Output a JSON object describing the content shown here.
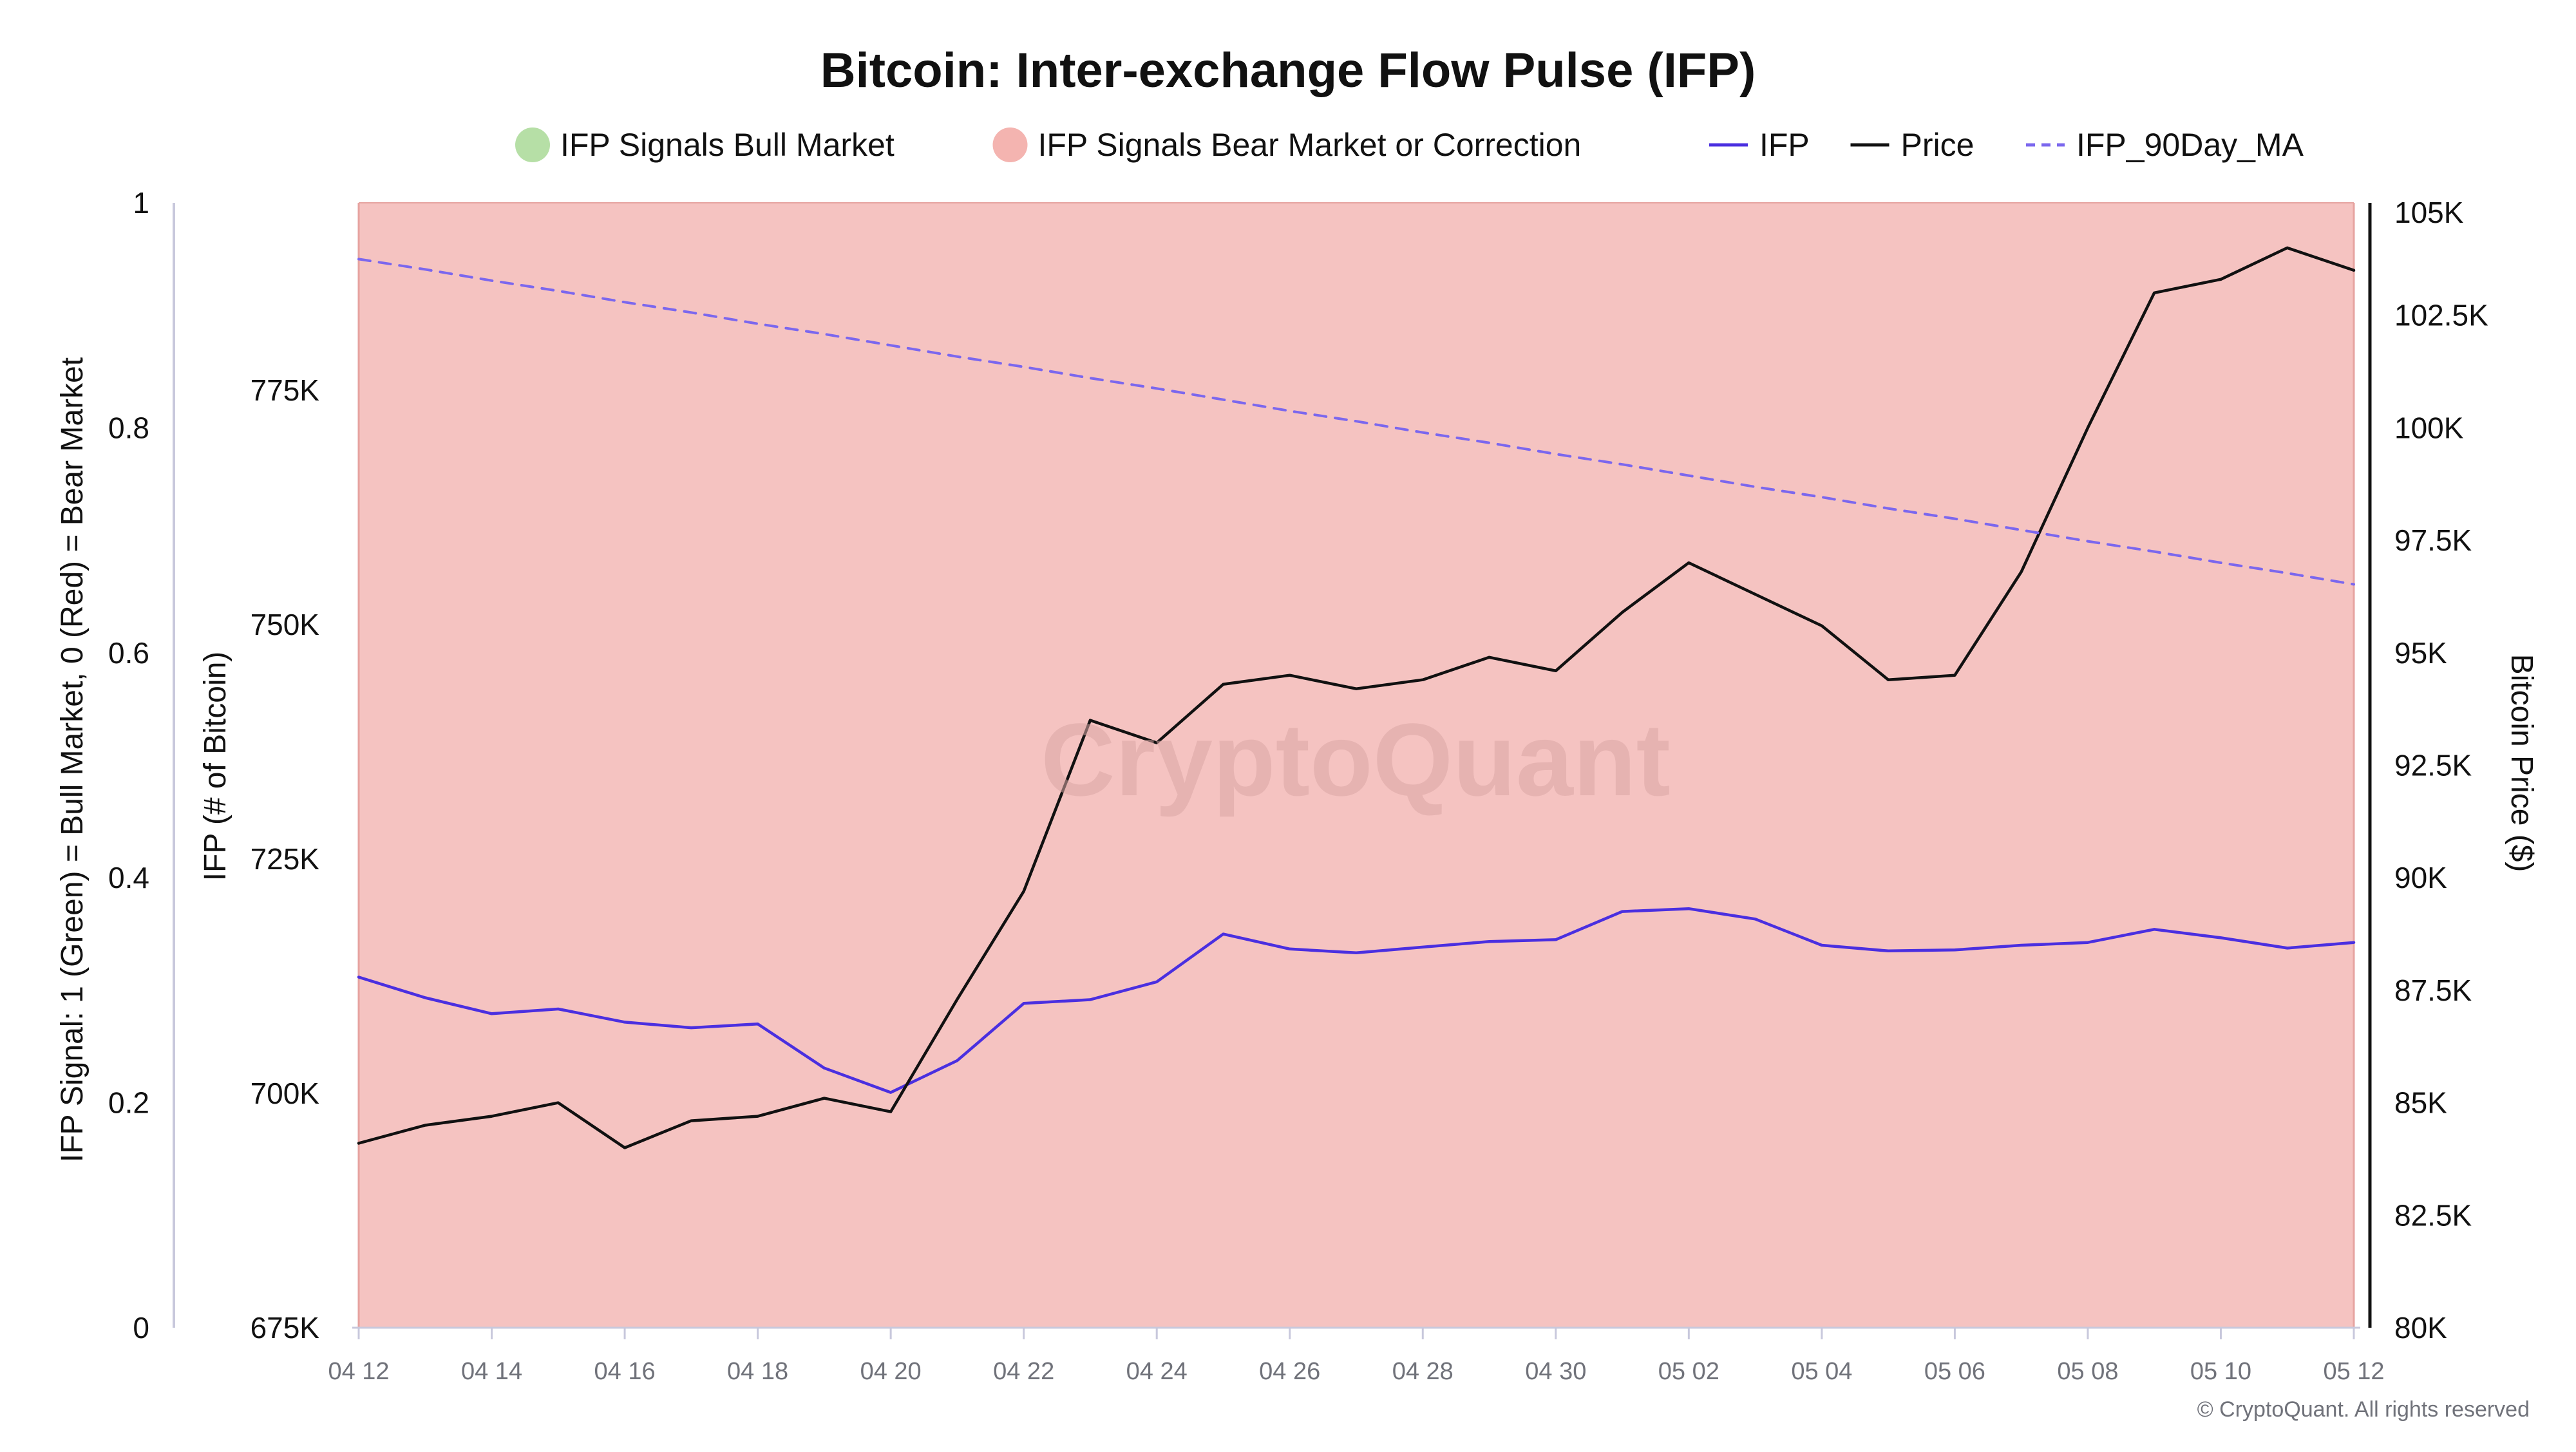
{
  "colors": {
    "bull_fill": "#b6dfa6",
    "bear_fill": "#f4b4b0",
    "bear_region": "#f5c3c1",
    "ifp_line": "#4a2fe0",
    "price_line": "#111111",
    "ma_line": "#7b67ee",
    "axis_text": "#111111",
    "date_text": "#70727a",
    "watermark": "#d9a6a4",
    "left_axis_line": "#c8c8dc"
  },
  "chart_data": {
    "type": "line",
    "title": "Bitcoin: Inter-exchange Flow Pulse (IFP)",
    "legend": [
      {
        "label": "IFP Signals Bull Market",
        "marker": "circle",
        "color": "#b6dfa6"
      },
      {
        "label": "IFP Signals Bear Market or Correction",
        "marker": "circle",
        "color": "#f4b4b0"
      },
      {
        "label": "IFP",
        "marker": "line",
        "color": "#4a2fe0"
      },
      {
        "label": "Price",
        "marker": "line",
        "color": "#111111"
      },
      {
        "label": "IFP_90Day_MA",
        "marker": "dashed",
        "color": "#7b67ee"
      }
    ],
    "legend_position": "top-center",
    "x": [
      "04 12",
      "04 13",
      "04 14",
      "04 15",
      "04 16",
      "04 17",
      "04 18",
      "04 19",
      "04 20",
      "04 21",
      "04 22",
      "04 23",
      "04 24",
      "04 25",
      "04 26",
      "04 27",
      "04 28",
      "04 29",
      "04 30",
      "05 01",
      "05 02",
      "05 03",
      "05 04",
      "05 05",
      "05 06",
      "05 07",
      "05 08",
      "05 09",
      "05 10",
      "05 11",
      "05 12"
    ],
    "x_tick_labels": [
      "04 12",
      "04 14",
      "04 16",
      "04 18",
      "04 20",
      "04 22",
      "04 24",
      "04 26",
      "04 28",
      "04 30",
      "05 02",
      "05 04",
      "05 06",
      "05 08",
      "05 10",
      "05 12"
    ],
    "axes": {
      "signal": {
        "label": "IFP Signal: 1 (Green) = Bull Market, 0 (Red) = Bear Market",
        "range": [
          0,
          1
        ],
        "ticks": [
          "0",
          "0.2",
          "0.4",
          "0.6",
          "0.8",
          "1"
        ]
      },
      "ifp": {
        "label": "IFP (# of Bitcoin)",
        "range": [
          675000,
          795000
        ],
        "ticks": [
          "675K",
          "700K",
          "725K",
          "750K",
          "775K"
        ]
      },
      "price": {
        "label": "Bitcoin Price ($)",
        "range": [
          80000,
          105000
        ],
        "ticks": [
          "80K",
          "82.5K",
          "85K",
          "87.5K",
          "90K",
          "92.5K",
          "95K",
          "97.5K",
          "100K",
          "102.5K",
          "105K"
        ]
      }
    },
    "grid": false,
    "signal_series": {
      "name": "IFP Signals Bear Market or Correction",
      "axis": "signal",
      "values": [
        0,
        0,
        0,
        0,
        0,
        0,
        0,
        0,
        0,
        0,
        0,
        0,
        0,
        0,
        0,
        0,
        0,
        0,
        0,
        0,
        0,
        0,
        0,
        0,
        0,
        0,
        0,
        0,
        0,
        0,
        0
      ]
    },
    "series": [
      {
        "name": "IFP",
        "axis": "ifp",
        "style": "solid",
        "color": "#4a2fe0",
        "values": [
          712400,
          710200,
          708500,
          709000,
          707600,
          707000,
          707400,
          702700,
          700100,
          703500,
          709600,
          710000,
          711900,
          717000,
          715400,
          715000,
          715600,
          716200,
          716400,
          719400,
          719700,
          718600,
          715800,
          715200,
          715300,
          715800,
          716100,
          717500,
          716600,
          715500,
          716100
        ]
      },
      {
        "name": "Price",
        "axis": "price",
        "style": "solid",
        "color": "#111111",
        "values": [
          84100,
          84500,
          84700,
          85000,
          84000,
          84600,
          84700,
          85100,
          84800,
          87300,
          89700,
          93500,
          93000,
          94300,
          94500,
          94200,
          94400,
          94900,
          94600,
          95900,
          97000,
          96300,
          95600,
          94400,
          94500,
          96800,
          100000,
          103000,
          103300,
          104000,
          103500
        ]
      },
      {
        "name": "IFP_90Day_MA",
        "axis": "ifp",
        "style": "dashed",
        "color": "#7b67ee",
        "values": [
          789000,
          787900,
          786700,
          785600,
          784400,
          783300,
          782100,
          781000,
          779800,
          778600,
          777500,
          776300,
          775200,
          774000,
          772800,
          771700,
          770500,
          769400,
          768200,
          767100,
          765900,
          764700,
          763600,
          762400,
          761300,
          760100,
          758900,
          757800,
          756600,
          755500,
          754300
        ]
      }
    ],
    "watermark": "CryptoQuant",
    "credit": "© CryptoQuant. All rights reserved"
  }
}
